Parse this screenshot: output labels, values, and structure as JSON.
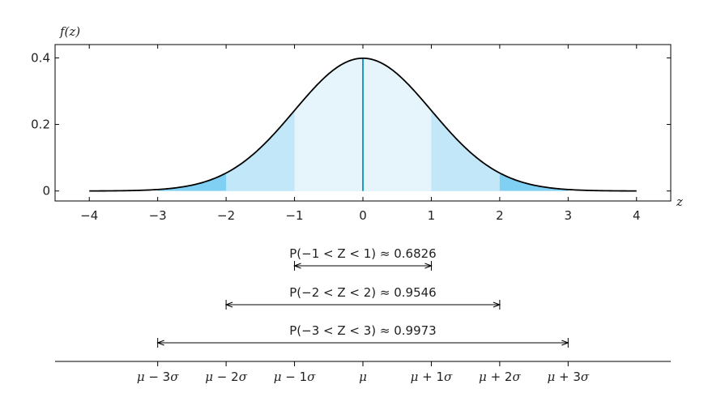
{
  "chart_data": {
    "type": "area",
    "ylabel": "f(z)",
    "xlabel": "z",
    "xlim": [
      -4.5,
      4.5
    ],
    "ylim": [
      -0.03,
      0.44
    ],
    "x_ticks": [
      -4,
      -3,
      -2,
      -1,
      0,
      1,
      2,
      3,
      4
    ],
    "y_ticks": [
      0,
      0.2,
      0.4
    ],
    "y_tick_labels": [
      "0",
      "0.2",
      "0.4"
    ],
    "series": [
      {
        "function": "standard normal density",
        "mean": 0,
        "sd": 1,
        "domain": [
          -4,
          4
        ]
      }
    ],
    "shaded_regions": [
      {
        "from": -3,
        "to": 3,
        "color": "#7fd0f2"
      },
      {
        "from": -2,
        "to": 2,
        "color": "#c2e7f8"
      },
      {
        "from": -1,
        "to": 1,
        "color": "#e6f5fc"
      }
    ],
    "mean_line": {
      "x": 0,
      "color": "#1a9bbf"
    },
    "curve_color": "#000000",
    "intervals": [
      {
        "from": -1,
        "to": 1,
        "label": "P(−1 < Z < 1) ≈ 0.6826"
      },
      {
        "from": -2,
        "to": 2,
        "label": "P(−2 < Z < 2) ≈ 0.9546"
      },
      {
        "from": -3,
        "to": 3,
        "label": "P(−3 < Z < 3) ≈ 0.9973"
      }
    ],
    "sigma_axis": [
      {
        "x": -3,
        "base": "μ",
        "op": " − ",
        "k": "3",
        "s": "σ"
      },
      {
        "x": -2,
        "base": "μ",
        "op": " − ",
        "k": "2",
        "s": "σ"
      },
      {
        "x": -1,
        "base": "μ",
        "op": " − ",
        "k": "1",
        "s": "σ"
      },
      {
        "x": 0,
        "base": "μ",
        "op": "",
        "k": "",
        "s": ""
      },
      {
        "x": 1,
        "base": "μ",
        "op": " + ",
        "k": "1",
        "s": "σ"
      },
      {
        "x": 2,
        "base": "μ",
        "op": " + ",
        "k": "2",
        "s": "σ"
      },
      {
        "x": 3,
        "base": "μ",
        "op": " + ",
        "k": "3",
        "s": "σ"
      }
    ]
  }
}
